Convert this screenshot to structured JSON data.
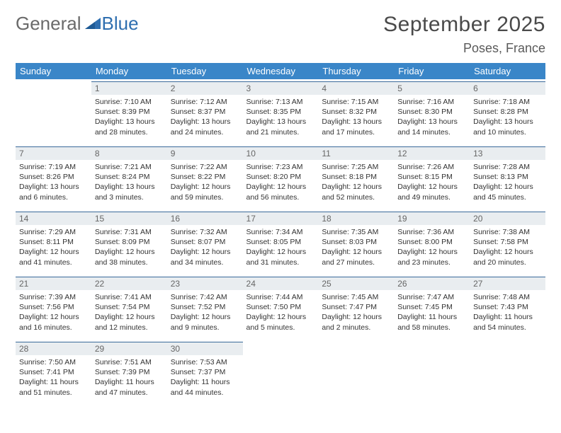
{
  "brand": {
    "part1": "General",
    "part2": "Blue"
  },
  "title": "September 2025",
  "location": "Poses, France",
  "colors": {
    "header_bg": "#3a86c8",
    "header_text": "#ffffff",
    "daynum_bg": "#e9edf0",
    "daynum_border": "#3a6a9a",
    "text": "#333333",
    "brand_gray": "#6a6a6a",
    "brand_blue": "#2f6fb0"
  },
  "weekdays": [
    "Sunday",
    "Monday",
    "Tuesday",
    "Wednesday",
    "Thursday",
    "Friday",
    "Saturday"
  ],
  "weeks": [
    [
      null,
      {
        "day": "1",
        "sunrise": "Sunrise: 7:10 AM",
        "sunset": "Sunset: 8:39 PM",
        "daylight1": "Daylight: 13 hours",
        "daylight2": "and 28 minutes."
      },
      {
        "day": "2",
        "sunrise": "Sunrise: 7:12 AM",
        "sunset": "Sunset: 8:37 PM",
        "daylight1": "Daylight: 13 hours",
        "daylight2": "and 24 minutes."
      },
      {
        "day": "3",
        "sunrise": "Sunrise: 7:13 AM",
        "sunset": "Sunset: 8:35 PM",
        "daylight1": "Daylight: 13 hours",
        "daylight2": "and 21 minutes."
      },
      {
        "day": "4",
        "sunrise": "Sunrise: 7:15 AM",
        "sunset": "Sunset: 8:32 PM",
        "daylight1": "Daylight: 13 hours",
        "daylight2": "and 17 minutes."
      },
      {
        "day": "5",
        "sunrise": "Sunrise: 7:16 AM",
        "sunset": "Sunset: 8:30 PM",
        "daylight1": "Daylight: 13 hours",
        "daylight2": "and 14 minutes."
      },
      {
        "day": "6",
        "sunrise": "Sunrise: 7:18 AM",
        "sunset": "Sunset: 8:28 PM",
        "daylight1": "Daylight: 13 hours",
        "daylight2": "and 10 minutes."
      }
    ],
    [
      {
        "day": "7",
        "sunrise": "Sunrise: 7:19 AM",
        "sunset": "Sunset: 8:26 PM",
        "daylight1": "Daylight: 13 hours",
        "daylight2": "and 6 minutes."
      },
      {
        "day": "8",
        "sunrise": "Sunrise: 7:21 AM",
        "sunset": "Sunset: 8:24 PM",
        "daylight1": "Daylight: 13 hours",
        "daylight2": "and 3 minutes."
      },
      {
        "day": "9",
        "sunrise": "Sunrise: 7:22 AM",
        "sunset": "Sunset: 8:22 PM",
        "daylight1": "Daylight: 12 hours",
        "daylight2": "and 59 minutes."
      },
      {
        "day": "10",
        "sunrise": "Sunrise: 7:23 AM",
        "sunset": "Sunset: 8:20 PM",
        "daylight1": "Daylight: 12 hours",
        "daylight2": "and 56 minutes."
      },
      {
        "day": "11",
        "sunrise": "Sunrise: 7:25 AM",
        "sunset": "Sunset: 8:18 PM",
        "daylight1": "Daylight: 12 hours",
        "daylight2": "and 52 minutes."
      },
      {
        "day": "12",
        "sunrise": "Sunrise: 7:26 AM",
        "sunset": "Sunset: 8:15 PM",
        "daylight1": "Daylight: 12 hours",
        "daylight2": "and 49 minutes."
      },
      {
        "day": "13",
        "sunrise": "Sunrise: 7:28 AM",
        "sunset": "Sunset: 8:13 PM",
        "daylight1": "Daylight: 12 hours",
        "daylight2": "and 45 minutes."
      }
    ],
    [
      {
        "day": "14",
        "sunrise": "Sunrise: 7:29 AM",
        "sunset": "Sunset: 8:11 PM",
        "daylight1": "Daylight: 12 hours",
        "daylight2": "and 41 minutes."
      },
      {
        "day": "15",
        "sunrise": "Sunrise: 7:31 AM",
        "sunset": "Sunset: 8:09 PM",
        "daylight1": "Daylight: 12 hours",
        "daylight2": "and 38 minutes."
      },
      {
        "day": "16",
        "sunrise": "Sunrise: 7:32 AM",
        "sunset": "Sunset: 8:07 PM",
        "daylight1": "Daylight: 12 hours",
        "daylight2": "and 34 minutes."
      },
      {
        "day": "17",
        "sunrise": "Sunrise: 7:34 AM",
        "sunset": "Sunset: 8:05 PM",
        "daylight1": "Daylight: 12 hours",
        "daylight2": "and 31 minutes."
      },
      {
        "day": "18",
        "sunrise": "Sunrise: 7:35 AM",
        "sunset": "Sunset: 8:03 PM",
        "daylight1": "Daylight: 12 hours",
        "daylight2": "and 27 minutes."
      },
      {
        "day": "19",
        "sunrise": "Sunrise: 7:36 AM",
        "sunset": "Sunset: 8:00 PM",
        "daylight1": "Daylight: 12 hours",
        "daylight2": "and 23 minutes."
      },
      {
        "day": "20",
        "sunrise": "Sunrise: 7:38 AM",
        "sunset": "Sunset: 7:58 PM",
        "daylight1": "Daylight: 12 hours",
        "daylight2": "and 20 minutes."
      }
    ],
    [
      {
        "day": "21",
        "sunrise": "Sunrise: 7:39 AM",
        "sunset": "Sunset: 7:56 PM",
        "daylight1": "Daylight: 12 hours",
        "daylight2": "and 16 minutes."
      },
      {
        "day": "22",
        "sunrise": "Sunrise: 7:41 AM",
        "sunset": "Sunset: 7:54 PM",
        "daylight1": "Daylight: 12 hours",
        "daylight2": "and 12 minutes."
      },
      {
        "day": "23",
        "sunrise": "Sunrise: 7:42 AM",
        "sunset": "Sunset: 7:52 PM",
        "daylight1": "Daylight: 12 hours",
        "daylight2": "and 9 minutes."
      },
      {
        "day": "24",
        "sunrise": "Sunrise: 7:44 AM",
        "sunset": "Sunset: 7:50 PM",
        "daylight1": "Daylight: 12 hours",
        "daylight2": "and 5 minutes."
      },
      {
        "day": "25",
        "sunrise": "Sunrise: 7:45 AM",
        "sunset": "Sunset: 7:47 PM",
        "daylight1": "Daylight: 12 hours",
        "daylight2": "and 2 minutes."
      },
      {
        "day": "26",
        "sunrise": "Sunrise: 7:47 AM",
        "sunset": "Sunset: 7:45 PM",
        "daylight1": "Daylight: 11 hours",
        "daylight2": "and 58 minutes."
      },
      {
        "day": "27",
        "sunrise": "Sunrise: 7:48 AM",
        "sunset": "Sunset: 7:43 PM",
        "daylight1": "Daylight: 11 hours",
        "daylight2": "and 54 minutes."
      }
    ],
    [
      {
        "day": "28",
        "sunrise": "Sunrise: 7:50 AM",
        "sunset": "Sunset: 7:41 PM",
        "daylight1": "Daylight: 11 hours",
        "daylight2": "and 51 minutes."
      },
      {
        "day": "29",
        "sunrise": "Sunrise: 7:51 AM",
        "sunset": "Sunset: 7:39 PM",
        "daylight1": "Daylight: 11 hours",
        "daylight2": "and 47 minutes."
      },
      {
        "day": "30",
        "sunrise": "Sunrise: 7:53 AM",
        "sunset": "Sunset: 7:37 PM",
        "daylight1": "Daylight: 11 hours",
        "daylight2": "and 44 minutes."
      },
      null,
      null,
      null,
      null
    ]
  ]
}
